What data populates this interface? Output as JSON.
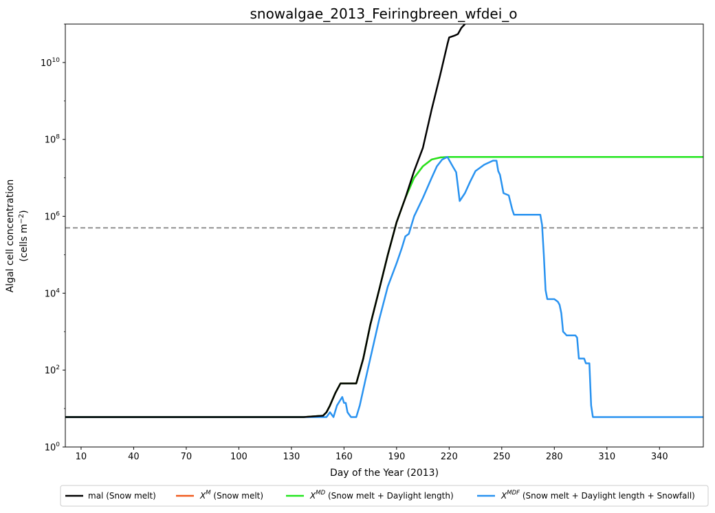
{
  "chart_data": {
    "type": "line",
    "title": "snowalgae_2013_Feiringbreen_wfdei_o",
    "xlabel": "Day of the Year (2013)",
    "ylabel_line1": "Algal cell concentration",
    "ylabel_line2_prefix": "(cells m",
    "ylabel_line2_sup": "−2",
    "ylabel_line2_suffix": ")",
    "yscale": "log",
    "xlim": [
      1,
      365
    ],
    "ylim": [
      1,
      100000000000
    ],
    "x_ticks": [
      10,
      40,
      70,
      100,
      130,
      160,
      190,
      220,
      250,
      280,
      310,
      340
    ],
    "y_ticks": [
      {
        "value": 1,
        "base": "10",
        "exp": "0"
      },
      {
        "value": 100,
        "base": "10",
        "exp": "2"
      },
      {
        "value": 10000,
        "base": "10",
        "exp": "4"
      },
      {
        "value": 1000000,
        "base": "10",
        "exp": "6"
      },
      {
        "value": 100000000,
        "base": "10",
        "exp": "8"
      },
      {
        "value": 10000000000,
        "base": "10",
        "exp": "10"
      }
    ],
    "threshold": {
      "y": 500000,
      "color": "#808080",
      "style": "dashed"
    },
    "grid": false,
    "legend_position": "bottom-outside",
    "series": [
      {
        "label": "mal (Snow melt)",
        "color": "#000000",
        "points": [
          [
            1,
            6
          ],
          [
            137,
            6
          ],
          [
            148,
            6.5
          ],
          [
            150,
            8
          ],
          [
            152,
            12
          ],
          [
            155,
            25
          ],
          [
            158,
            45
          ],
          [
            167,
            45
          ],
          [
            171,
            200
          ],
          [
            175,
            1500
          ],
          [
            180,
            12000
          ],
          [
            185,
            100000
          ],
          [
            190,
            700000
          ],
          [
            195,
            3000000
          ],
          [
            200,
            15000000
          ],
          [
            205,
            60000000
          ],
          [
            210,
            600000000
          ],
          [
            215,
            5000000000
          ],
          [
            219,
            30000000000
          ],
          [
            220,
            45000000000
          ],
          [
            223,
            50000000000
          ],
          [
            225,
            55000000000
          ],
          [
            227,
            80000000000
          ],
          [
            229,
            100000000000
          ]
        ]
      },
      {
        "label_base": "X",
        "label_sup": "M",
        "label_suffix": " (Snow melt)",
        "color": "#f05a1e",
        "points": [
          [
            1,
            6
          ],
          [
            137,
            6
          ],
          [
            148,
            6.5
          ],
          [
            150,
            8
          ],
          [
            152,
            12
          ],
          [
            155,
            25
          ],
          [
            158,
            45
          ],
          [
            167,
            45
          ],
          [
            171,
            200
          ],
          [
            175,
            1500
          ],
          [
            180,
            12000
          ],
          [
            185,
            100000
          ],
          [
            190,
            700000
          ],
          [
            195,
            3000000
          ],
          [
            200,
            10000000
          ],
          [
            205,
            20000000
          ],
          [
            210,
            30000000
          ],
          [
            215,
            34000000
          ],
          [
            220,
            35000000
          ],
          [
            365,
            35000000
          ]
        ]
      },
      {
        "label_base": "X",
        "label_sup": "MD",
        "label_suffix": " (Snow melt + Daylight length)",
        "color": "#22e61e",
        "points": [
          [
            1,
            6
          ],
          [
            137,
            6
          ],
          [
            148,
            6.5
          ],
          [
            150,
            8
          ],
          [
            152,
            12
          ],
          [
            155,
            25
          ],
          [
            158,
            45
          ],
          [
            167,
            45
          ],
          [
            171,
            200
          ],
          [
            175,
            1500
          ],
          [
            180,
            12000
          ],
          [
            185,
            100000
          ],
          [
            190,
            700000
          ],
          [
            195,
            3000000
          ],
          [
            200,
            10000000
          ],
          [
            205,
            20000000
          ],
          [
            210,
            30000000
          ],
          [
            215,
            34000000
          ],
          [
            220,
            35000000
          ],
          [
            365,
            35000000
          ]
        ]
      },
      {
        "label_base": "X",
        "label_sup": "MDF",
        "label_suffix": " (Snow melt + Daylight length + Snowfall)",
        "color": "#2892f0",
        "points": [
          [
            1,
            6
          ],
          [
            150,
            6
          ],
          [
            152,
            8
          ],
          [
            154,
            6
          ],
          [
            156,
            12
          ],
          [
            159,
            20
          ],
          [
            160,
            14
          ],
          [
            161,
            14
          ],
          [
            162,
            8
          ],
          [
            164,
            6
          ],
          [
            167,
            6
          ],
          [
            169,
            12
          ],
          [
            172,
            50
          ],
          [
            175,
            200
          ],
          [
            180,
            2000
          ],
          [
            185,
            15000
          ],
          [
            190,
            60000
          ],
          [
            193,
            150000
          ],
          [
            195,
            300000
          ],
          [
            197,
            350000
          ],
          [
            200,
            1000000
          ],
          [
            205,
            3000000
          ],
          [
            210,
            10000000
          ],
          [
            213,
            20000000
          ],
          [
            216,
            30000000
          ],
          [
            219,
            35000000
          ],
          [
            222,
            20000000
          ],
          [
            224,
            14000000
          ],
          [
            225,
            6000000
          ],
          [
            226,
            2500000
          ],
          [
            229,
            4000000
          ],
          [
            232,
            8000000
          ],
          [
            235,
            15000000
          ],
          [
            240,
            22000000
          ],
          [
            245,
            28000000
          ],
          [
            247,
            28000000
          ],
          [
            248,
            15000000
          ],
          [
            249,
            12000000
          ],
          [
            251,
            4000000
          ],
          [
            254,
            3500000
          ],
          [
            256,
            1500000
          ],
          [
            257,
            1100000
          ],
          [
            260,
            1100000
          ],
          [
            272,
            1100000
          ],
          [
            273,
            600000
          ],
          [
            274,
            100000
          ],
          [
            275,
            12000
          ],
          [
            276,
            7000
          ],
          [
            280,
            7000
          ],
          [
            282,
            6000
          ],
          [
            283,
            5000
          ],
          [
            284,
            3000
          ],
          [
            285,
            1000
          ],
          [
            286,
            900
          ],
          [
            287,
            800
          ],
          [
            292,
            800
          ],
          [
            293,
            700
          ],
          [
            294,
            200
          ],
          [
            297,
            200
          ],
          [
            298,
            150
          ],
          [
            300,
            150
          ],
          [
            301,
            12
          ],
          [
            302,
            6
          ],
          [
            365,
            6
          ]
        ]
      }
    ]
  }
}
